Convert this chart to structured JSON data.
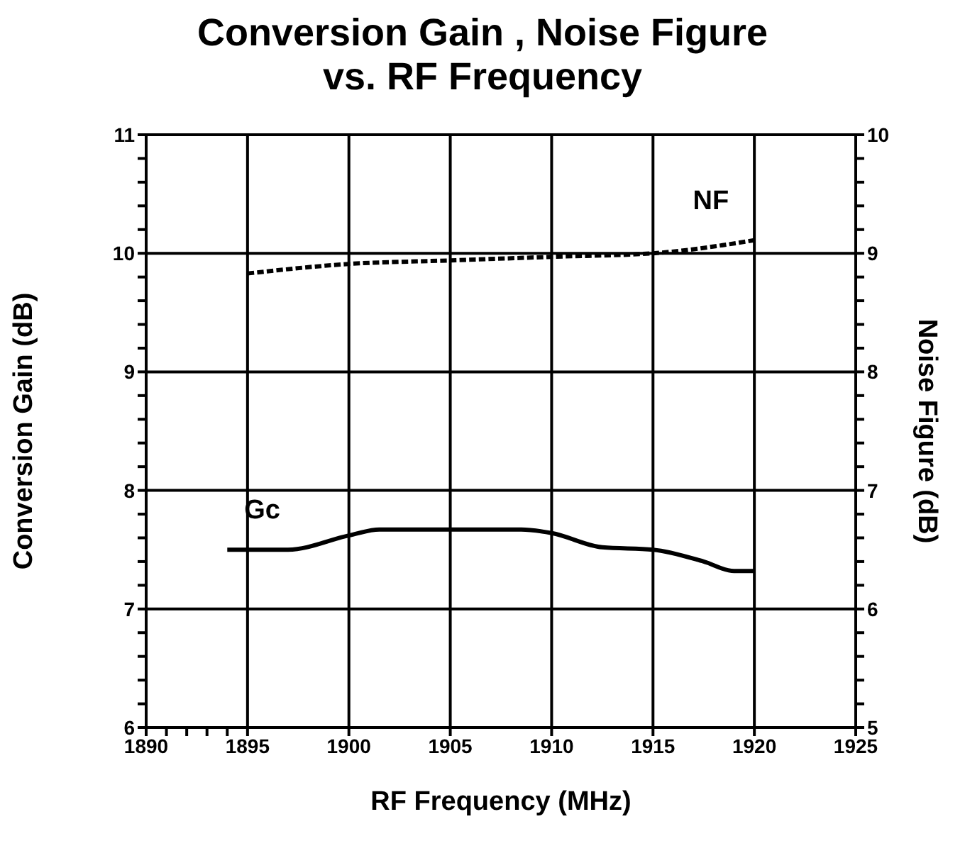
{
  "chart_data": {
    "type": "line",
    "title": "Conversion Gain , Noise Figure\nvs. RF Frequency",
    "xlabel": "RF Frequency (MHz)",
    "ylabel": "Conversion Gain (dB)",
    "y2label": "Noise Figure (dB)",
    "xlim": [
      1890,
      1925
    ],
    "xticks": [
      1890,
      {
        "value": 1891,
        "label": null
      },
      {
        "value": 1892,
        "label": null
      },
      {
        "value": 1893,
        "label": null
      },
      {
        "value": 1894,
        "label": null
      },
      1895,
      1900,
      1905,
      1910,
      1915,
      1920,
      1925
    ],
    "ylim": [
      6,
      11
    ],
    "yticks": [
      6,
      {
        "value": 6.2,
        "label": null
      },
      {
        "value": 6.4,
        "label": null
      },
      {
        "value": 6.6,
        "label": null
      },
      {
        "value": 6.8,
        "label": null
      },
      7,
      {
        "value": 7.2,
        "label": null
      },
      {
        "value": 7.4,
        "label": null
      },
      {
        "value": 7.6,
        "label": null
      },
      {
        "value": 7.8,
        "label": null
      },
      8,
      {
        "value": 8.2,
        "label": null
      },
      {
        "value": 8.4,
        "label": null
      },
      {
        "value": 8.6,
        "label": null
      },
      {
        "value": 8.8,
        "label": null
      },
      9,
      {
        "value": 9.2,
        "label": null
      },
      {
        "value": 9.4,
        "label": null
      },
      {
        "value": 9.6,
        "label": null
      },
      {
        "value": 9.8,
        "label": null
      },
      10,
      {
        "value": 10.2,
        "label": null
      },
      {
        "value": 10.4,
        "label": null
      },
      {
        "value": 10.6,
        "label": null
      },
      {
        "value": 10.8,
        "label": null
      },
      11
    ],
    "y2lim": [
      5,
      10
    ],
    "y2ticks": [
      5,
      {
        "value": 5.2,
        "label": null
      },
      {
        "value": 5.4,
        "label": null
      },
      {
        "value": 5.6,
        "label": null
      },
      {
        "value": 5.8,
        "label": null
      },
      6,
      {
        "value": 6.2,
        "label": null
      },
      {
        "value": 6.4,
        "label": null
      },
      {
        "value": 6.6,
        "label": null
      },
      {
        "value": 6.8,
        "label": null
      },
      7,
      {
        "value": 7.2,
        "label": null
      },
      {
        "value": 7.4,
        "label": null
      },
      {
        "value": 7.6,
        "label": null
      },
      {
        "value": 7.8,
        "label": null
      },
      8,
      {
        "value": 8.2,
        "label": null
      },
      {
        "value": 8.4,
        "label": null
      },
      {
        "value": 8.6,
        "label": null
      },
      {
        "value": 8.8,
        "label": null
      },
      9,
      {
        "value": 9.2,
        "label": null
      },
      {
        "value": 9.4,
        "label": null
      },
      {
        "value": 9.6,
        "label": null
      },
      {
        "value": 9.8,
        "label": null
      },
      10
    ],
    "grid": true,
    "marker": "none",
    "series": [
      {
        "name": "Gc",
        "color": "#000000",
        "line_style": "solid",
        "axis": "y",
        "x": [
          1894,
          1897,
          1900,
          1901.5,
          1905,
          1908.5,
          1910,
          1912.5,
          1915,
          1917.5,
          1919,
          1920
        ],
        "values": [
          7.5,
          7.5,
          7.62,
          7.67,
          7.67,
          7.67,
          7.64,
          7.52,
          7.5,
          7.4,
          7.32,
          7.32
        ]
      },
      {
        "name": "NF",
        "color": "#000000",
        "line_style": "dashed",
        "axis": "y2",
        "x": [
          1895,
          1900,
          1905,
          1910,
          1915,
          1920
        ],
        "values": [
          8.83,
          8.91,
          8.94,
          8.97,
          9.0,
          9.11
        ]
      }
    ]
  }
}
